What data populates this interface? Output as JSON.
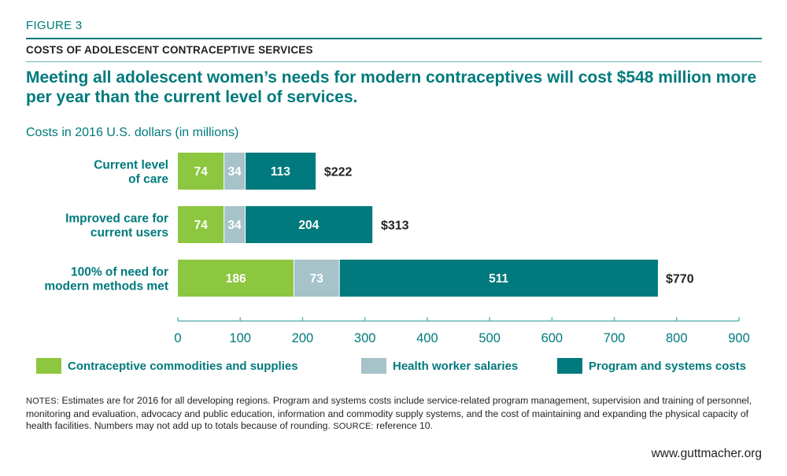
{
  "figure_label": "FIGURE 3",
  "subtitle": "COSTS OF ADOLESCENT CONTRACEPTIVE SERVICES",
  "headline": "Meeting all adolescent women’s needs for modern contraceptives will cost $548 million more per year than the current level of services.",
  "units_label": "Costs in 2016 U.S. dollars (in millions)",
  "colors": {
    "commodities": "#8dc63f",
    "salaries": "#a5c3c9",
    "program": "#007a7c",
    "teal_text": "#007a7c",
    "axis": "#6bb3b4"
  },
  "chart_data": {
    "type": "bar",
    "orientation": "horizontal",
    "stacked": true,
    "categories": [
      [
        "Current level",
        "of care"
      ],
      [
        "Improved care for",
        "current users"
      ],
      [
        "100% of need for",
        "modern methods met"
      ]
    ],
    "series": [
      {
        "name": "Contraceptive commodities and supplies",
        "color_key": "commodities",
        "values": [
          74,
          74,
          186
        ]
      },
      {
        "name": "Health worker salaries",
        "color_key": "salaries",
        "values": [
          34,
          34,
          73
        ]
      },
      {
        "name": "Program and systems costs",
        "color_key": "program",
        "values": [
          113,
          204,
          511
        ]
      }
    ],
    "totals": [
      "$222",
      "$313",
      "$770"
    ],
    "bar_value_totals": [
      222,
      313,
      770
    ],
    "xlim": [
      0,
      900
    ],
    "xticks": [
      0,
      100,
      200,
      300,
      400,
      500,
      600,
      700,
      800,
      900
    ],
    "xlabel": "",
    "ylabel": "",
    "legend_position": "bottom"
  },
  "legend": [
    {
      "label": "Contraceptive commodities and supplies",
      "color_key": "commodities"
    },
    {
      "label": "Health worker salaries",
      "color_key": "salaries"
    },
    {
      "label": "Program and systems costs",
      "color_key": "program"
    }
  ],
  "notes": {
    "notes_label": "NOTES:",
    "notes_text": " Estimates are for 2016 for all developing regions. Program and systems costs include service-related program management, supervision and training of personnel, monitoring and evaluation, advocacy and public education, information and commodity supply systems, and the cost of maintaining and expanding the physical capacity of health facilities. Numbers may not add up to totals because of rounding. ",
    "source_label": "SOURCE:",
    "source_text": " reference 10."
  },
  "website": "www.guttmacher.org"
}
